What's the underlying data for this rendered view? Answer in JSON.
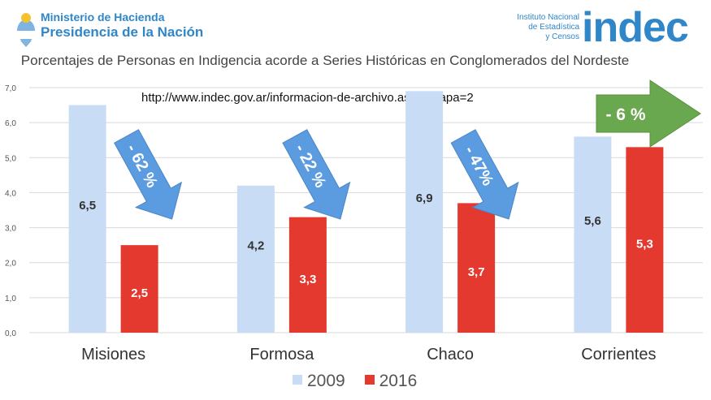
{
  "header": {
    "ministry": "Ministerio de Hacienda",
    "presidency": "Presidencia de la Nación",
    "institute_lines": [
      "Instituto Nacional",
      "de Estadística",
      "y Censos"
    ],
    "indec_logo": "indec"
  },
  "chart_data": {
    "type": "bar",
    "title": "Porcentajes de Personas en Indigencia acorde a Series Históricas en Conglomerados del Nordeste",
    "source_url": "http://www.indec.gov.ar/informacion-de-archivo.asp?solapa=2",
    "categories": [
      "Misiones",
      "Formosa",
      "Chaco",
      "Corrientes"
    ],
    "series": [
      {
        "name": "2009",
        "color": "#c8ddf5",
        "values": [
          6.5,
          4.2,
          6.9,
          5.6
        ],
        "labels": [
          "6,5",
          "4,2",
          "6,9",
          "5,6"
        ]
      },
      {
        "name": "2016",
        "color": "#e3392e",
        "values": [
          2.5,
          3.3,
          3.7,
          5.3
        ],
        "labels": [
          "2,5",
          "3,3",
          "3,7",
          "5,3"
        ]
      }
    ],
    "ylim": [
      0,
      7
    ],
    "yticks": [
      "0,0",
      "1,0",
      "2,0",
      "3,0",
      "4,0",
      "5,0",
      "6,0",
      "7,0"
    ],
    "grid": true,
    "legend": "bottom",
    "annotations": [
      {
        "text": "- 62 %",
        "category": "Misiones",
        "style": "down-arrow",
        "color": "#5b9be0"
      },
      {
        "text": "- 22 %",
        "category": "Formosa",
        "style": "down-arrow",
        "color": "#5b9be0"
      },
      {
        "text": "- 47%",
        "category": "Chaco",
        "style": "down-arrow",
        "color": "#5b9be0"
      },
      {
        "text": "- 6 %",
        "category": "Corrientes",
        "style": "right-arrow",
        "color": "#6aa84f"
      }
    ]
  }
}
